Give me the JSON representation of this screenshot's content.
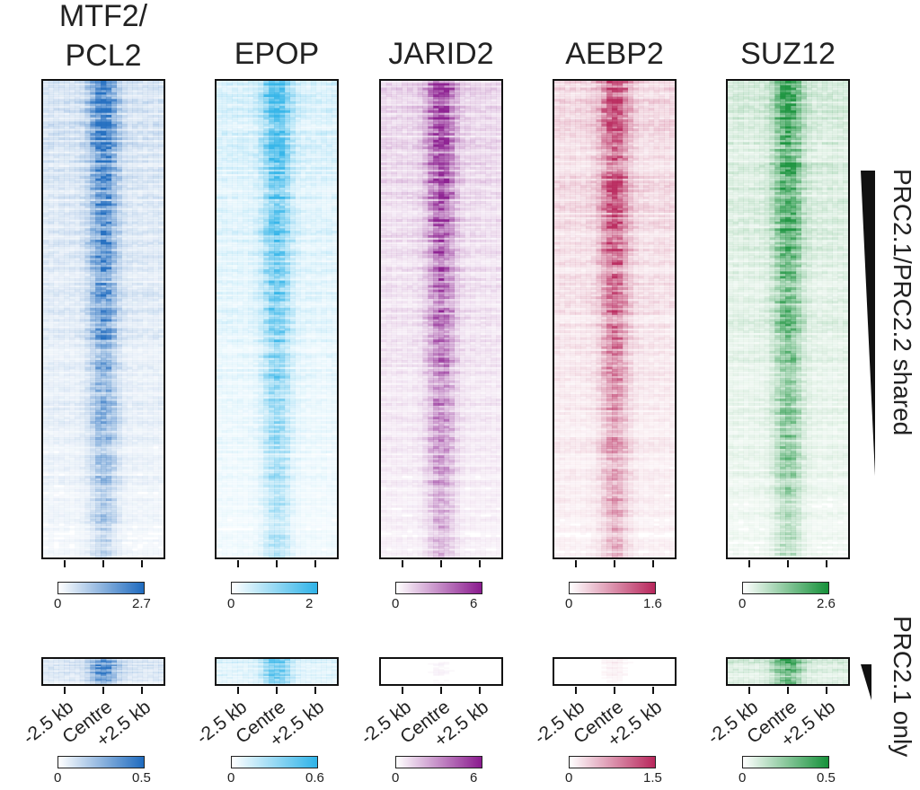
{
  "chart_data": {
    "type": "heatmap",
    "columns": [
      {
        "name": "MTF2/\nPCL2",
        "color": "#1f6bbf",
        "vmax_top": "2.7",
        "vmax_bottom": "0.5",
        "bottom_intensity": 0.9
      },
      {
        "name": "EPOP",
        "color": "#2fb3e8",
        "vmax_top": "2",
        "vmax_bottom": "0.6",
        "bottom_intensity": 0.85
      },
      {
        "name": "JARID2",
        "color": "#8a1a8e",
        "vmax_top": "6",
        "vmax_bottom": "6",
        "bottom_intensity": 0.05
      },
      {
        "name": "AEBP2",
        "color": "#b8275c",
        "vmax_top": "1.6",
        "vmax_bottom": "1.5",
        "bottom_intensity": 0.08
      },
      {
        "name": "SUZ12",
        "color": "#16913a",
        "vmax_top": "2.6",
        "vmax_bottom": "0.5",
        "bottom_intensity": 0.9
      }
    ],
    "vmin": "0",
    "x_ticks": [
      "-2.5 kb",
      "Centre",
      "+2.5 kb"
    ],
    "groups": [
      {
        "label": "PRC2.1/PRC2.2 shared"
      },
      {
        "label": "PRC2.1 only"
      }
    ]
  }
}
